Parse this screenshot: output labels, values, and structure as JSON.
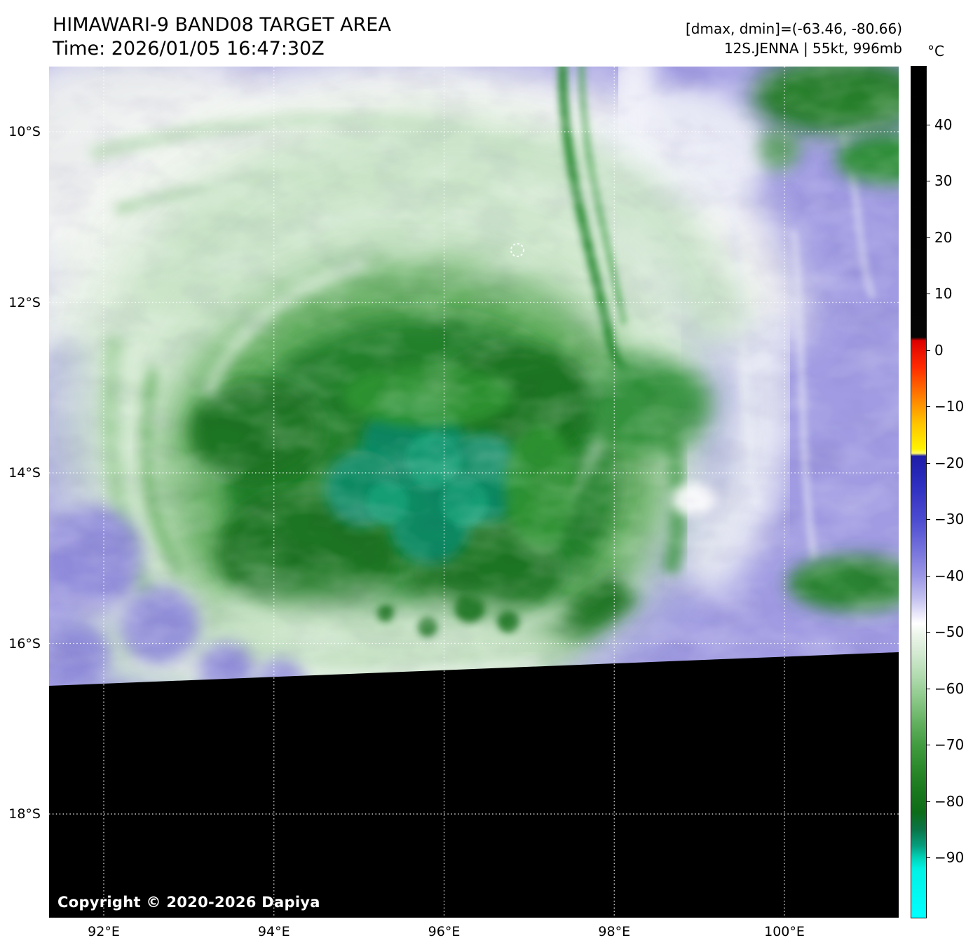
{
  "header": {
    "title": "HIMAWARI-9 BAND08 TARGET AREA",
    "time": "Time: 2026/01/05 16:47:30Z",
    "range": "[dmax, dmin]=(-63.46, -80.66)",
    "storm": "12S.JENNA | 55kt, 996mb"
  },
  "map": {
    "copyright": "Copyright © 2020-2026 Dapiya",
    "lat_ticks": [
      {
        "label": "10°S",
        "value": 10
      },
      {
        "label": "12°S",
        "value": 12
      },
      {
        "label": "14°S",
        "value": 14
      },
      {
        "label": "16°S",
        "value": 16
      },
      {
        "label": "18°S",
        "value": 18
      }
    ],
    "lon_ticks": [
      {
        "label": "92°E",
        "value": 92
      },
      {
        "label": "94°E",
        "value": 94
      },
      {
        "label": "96°E",
        "value": 96
      },
      {
        "label": "98°E",
        "value": 98
      },
      {
        "label": "100°E",
        "value": 100
      }
    ]
  },
  "colorbar": {
    "unit": "°C",
    "ticks": [
      {
        "label": "40",
        "value": 40
      },
      {
        "label": "30",
        "value": 30
      },
      {
        "label": "20",
        "value": 20
      },
      {
        "label": "10",
        "value": 10
      },
      {
        "label": "0",
        "value": 0
      },
      {
        "label": "−10",
        "value": -10
      },
      {
        "label": "−20",
        "value": -20
      },
      {
        "label": "−30",
        "value": -30
      },
      {
        "label": "−40",
        "value": -40
      },
      {
        "label": "−50",
        "value": -50
      },
      {
        "label": "−60",
        "value": -60
      },
      {
        "label": "−70",
        "value": -70
      },
      {
        "label": "−80",
        "value": -80
      },
      {
        "label": "−90",
        "value": -90
      }
    ],
    "palette": [
      [
        51,
        "#000000"
      ],
      [
        2.3,
        "#050505"
      ],
      [
        1.7,
        "#dd0000"
      ],
      [
        -3,
        "#ff2a00"
      ],
      [
        -8,
        "#ff7a00"
      ],
      [
        -13,
        "#ffc400"
      ],
      [
        -17.5,
        "#fff200"
      ],
      [
        -18.3,
        "#fffb66"
      ],
      [
        -18.8,
        "#1d1da8"
      ],
      [
        -24,
        "#2e2ec0"
      ],
      [
        -30,
        "#4b4bd0"
      ],
      [
        -36,
        "#7a77dd"
      ],
      [
        -40,
        "#9b97e6"
      ],
      [
        -44,
        "#c3c0f0"
      ],
      [
        -47,
        "#eceafa"
      ],
      [
        -48.5,
        "#ffffff"
      ],
      [
        -50.5,
        "#ecf5ea"
      ],
      [
        -54,
        "#d2e9d0"
      ],
      [
        -58,
        "#b0dbae"
      ],
      [
        -62,
        "#8bc888"
      ],
      [
        -66,
        "#64b161"
      ],
      [
        -70,
        "#429c40"
      ],
      [
        -74,
        "#2c8a2c"
      ],
      [
        -78,
        "#1a791d"
      ],
      [
        -82,
        "#0d6c18"
      ],
      [
        -85,
        "#0a7447"
      ],
      [
        -88,
        "#069f7f"
      ],
      [
        -90,
        "#00d2b8"
      ],
      [
        -92,
        "#00f2e4"
      ],
      [
        -101,
        "#00ffff"
      ]
    ]
  }
}
